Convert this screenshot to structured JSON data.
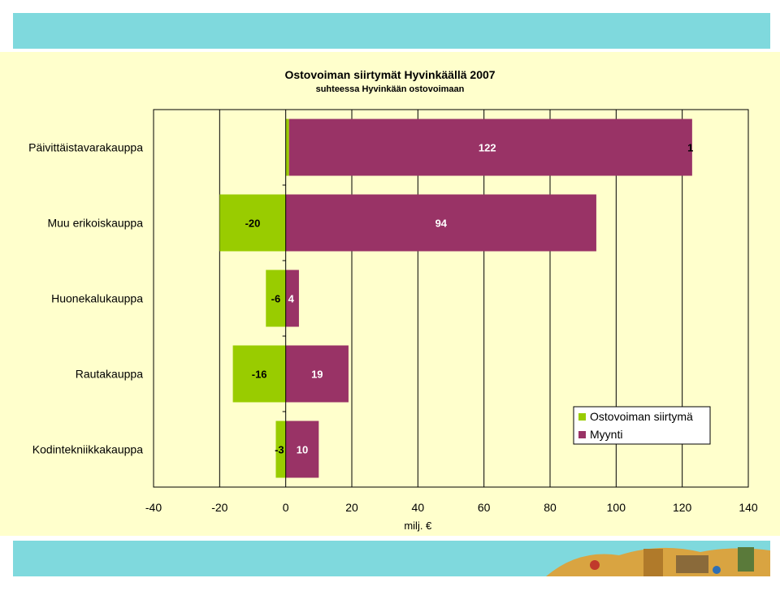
{
  "colors": {
    "band": "#7fd9dd",
    "panel": "#ffffcc",
    "green": "#99cc00",
    "purple": "#993366"
  },
  "chart_data": {
    "type": "bar",
    "orientation": "horizontal",
    "stacked": true,
    "title": "Ostovoiman siirtymät Hyvinkäällä 2007",
    "subtitle": "suhteessa Hyvinkään ostovoimaan",
    "xlabel": "milj. €",
    "ylabel": "",
    "categories": [
      "Päivittäistavarakauppa",
      "Muu erikoiskauppa",
      "Huonekalukauppa",
      "Rautakauppa",
      "Kodintekniikkakauppa"
    ],
    "series": [
      {
        "name": "Ostovoiman siirtymä",
        "values": [
          1,
          -20,
          -6,
          -16,
          -3
        ],
        "labels": [
          "1",
          "-20",
          "-6",
          "-16",
          "-3"
        ],
        "color": "#99cc00"
      },
      {
        "name": "Myynti",
        "values": [
          122,
          94,
          4,
          19,
          10
        ],
        "labels": [
          "122",
          "94",
          "4",
          "19",
          "10"
        ],
        "color": "#993366"
      }
    ],
    "xlim": [
      -40,
      140
    ],
    "xticks": [
      -40,
      -20,
      0,
      20,
      40,
      60,
      80,
      100,
      120,
      140
    ],
    "grid": "vertical",
    "legend": "bottom-right"
  }
}
